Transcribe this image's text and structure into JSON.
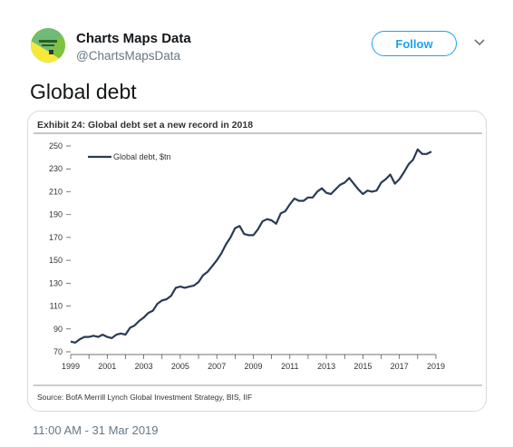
{
  "author": {
    "display_name": "Charts Maps Data",
    "handle": "@ChartsMapsData",
    "avatar_icon": "charts-maps-data-logo"
  },
  "follow_label": "Follow",
  "menu_icon": "chevron-down-icon",
  "tweet_text": "Global debt",
  "timestamp": "11:00 AM - 31 Mar 2019",
  "chart_data": {
    "type": "line",
    "title": "Exhibit 24: Global debt set a new record in 2018",
    "source": "Source: BofA Merrill Lynch Global Investment Strategy, BIS, IIF",
    "xlim": [
      1999,
      2019
    ],
    "ylim": [
      70,
      250
    ],
    "xticks": [
      "1999",
      "2001",
      "2003",
      "2005",
      "2007",
      "2009",
      "2011",
      "2013",
      "2015",
      "2017",
      "2019"
    ],
    "yticks": [
      "70",
      "90",
      "110",
      "130",
      "150",
      "170",
      "190",
      "210",
      "230",
      "250"
    ],
    "grid": false,
    "legend_position": "top-left",
    "series": [
      {
        "name": "Global debt, $tn",
        "color": "#2a3b55",
        "x": [
          1999,
          1999.25,
          1999.5,
          1999.75,
          2000,
          2000.25,
          2000.5,
          2000.75,
          2001,
          2001.25,
          2001.5,
          2001.75,
          2002,
          2002.25,
          2002.5,
          2002.75,
          2003,
          2003.25,
          2003.5,
          2003.75,
          2004,
          2004.25,
          2004.5,
          2004.75,
          2005,
          2005.25,
          2005.5,
          2005.75,
          2006,
          2006.25,
          2006.5,
          2006.75,
          2007,
          2007.25,
          2007.5,
          2007.75,
          2008,
          2008.25,
          2008.5,
          2008.75,
          2009,
          2009.25,
          2009.5,
          2009.75,
          2010,
          2010.25,
          2010.5,
          2010.75,
          2011,
          2011.25,
          2011.5,
          2011.75,
          2012,
          2012.25,
          2012.5,
          2012.75,
          2013,
          2013.25,
          2013.5,
          2013.75,
          2014,
          2014.25,
          2014.5,
          2014.75,
          2015,
          2015.25,
          2015.5,
          2015.75,
          2016,
          2016.25,
          2016.5,
          2016.75,
          2017,
          2017.25,
          2017.5,
          2017.75,
          2018,
          2018.25,
          2018.5,
          2018.75
        ],
        "values": [
          79,
          78,
          81,
          83,
          83,
          84,
          83,
          85,
          83,
          82,
          85,
          86,
          85,
          91,
          93,
          97,
          100,
          104,
          106,
          112,
          115,
          116,
          119,
          126,
          127,
          126,
          127,
          128,
          131,
          137,
          140,
          145,
          150,
          156,
          164,
          170,
          178,
          180,
          173,
          172,
          172,
          177,
          184,
          186,
          185,
          182,
          191,
          193,
          199,
          204,
          202,
          202,
          205,
          205,
          210,
          213,
          209,
          208,
          212,
          216,
          218,
          222,
          217,
          212,
          208,
          211,
          210,
          211,
          218,
          221,
          225,
          217,
          221,
          227,
          234,
          238,
          247,
          243,
          243,
          245
        ]
      }
    ]
  }
}
